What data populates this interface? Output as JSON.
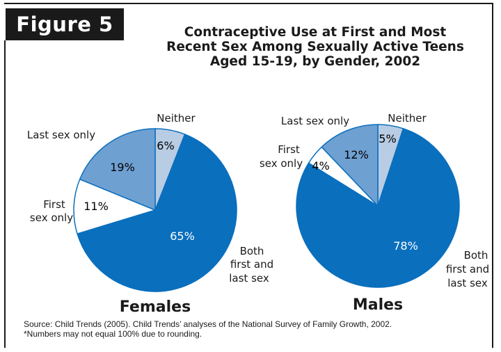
{
  "figure_label": "Figure 5",
  "title_lines": [
    "Contraceptive Use at First and Most",
    "Recent Sex Among Sexually Active Teens",
    "Aged 15-19, by Gender, 2002"
  ],
  "source_lines": [
    "Source: Child Trends (2005). Child Trends’ analyses of the National Survey of Family Growth, 2002.",
    "*Numbers may not equal 100% due to rounding."
  ],
  "colors": {
    "neither": "#b8cce4",
    "last_sex_only": "#6fa0d2",
    "first_sex_only": "#ffffff",
    "both": "#0a6fbd",
    "outline": "#0a6fbd"
  },
  "chart_data": [
    {
      "type": "pie",
      "title": "Females",
      "categories": [
        "Neither",
        "Both first and last sex",
        "First sex only",
        "Last sex only"
      ],
      "values": [
        6,
        65,
        11,
        19
      ],
      "labels": [
        "6%",
        "65%",
        "11%",
        "19%"
      ]
    },
    {
      "type": "pie",
      "title": "Males",
      "categories": [
        "Neither",
        "Both first and last sex",
        "First sex only",
        "Last sex only"
      ],
      "values": [
        5,
        78,
        4,
        12
      ],
      "labels": [
        "5%",
        "78%",
        "4%",
        "12%"
      ]
    }
  ]
}
